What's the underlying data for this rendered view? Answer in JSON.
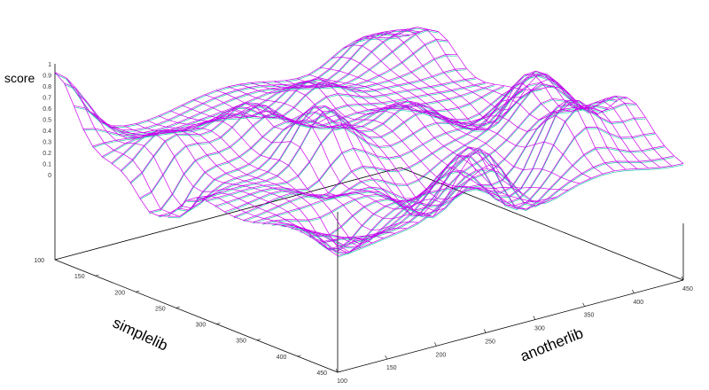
{
  "chart_data": {
    "type": "surface",
    "title": "",
    "zlabel": "score",
    "xlabel": "simplelib",
    "ylabel": "anotherlib",
    "x_range": [
      100,
      450
    ],
    "y_range": [
      100,
      450
    ],
    "z_range": [
      0,
      1
    ],
    "x_ticks": [
      "100",
      "150",
      "200",
      "250",
      "300",
      "350",
      "400",
      "450"
    ],
    "y_ticks": [
      "100",
      "150",
      "200",
      "250",
      "300",
      "350",
      "400",
      "450"
    ],
    "z_ticks": [
      "0",
      "0.1",
      "0.2",
      "0.3",
      "0.4",
      "0.5",
      "0.6",
      "0.7",
      "0.8",
      "0.9",
      "1"
    ],
    "grid": false,
    "surface_style": "wireframe mesh",
    "colors": {
      "top_surface": "#cc00ee",
      "bottom_surface": "#22ccaa"
    },
    "grid_size": 30,
    "peaks": [
      {
        "x": 100,
        "y": 100,
        "z": 0.85
      },
      {
        "x": 190,
        "y": 135,
        "z": 0.55
      },
      {
        "x": 270,
        "y": 230,
        "z": 0.78
      },
      {
        "x": 440,
        "y": 230,
        "z": 0.62
      },
      {
        "x": 175,
        "y": 300,
        "z": 0.6
      },
      {
        "x": 260,
        "y": 330,
        "z": 0.58
      },
      {
        "x": 395,
        "y": 380,
        "z": 0.88
      },
      {
        "x": 325,
        "y": 400,
        "z": 0.7
      },
      {
        "x": 430,
        "y": 265,
        "z": 0.72
      },
      {
        "x": 300,
        "y": 430,
        "z": 0.62
      },
      {
        "x": 380,
        "y": 440,
        "z": 0.64
      },
      {
        "x": 150,
        "y": 440,
        "z": 0.6
      },
      {
        "x": 120,
        "y": 400,
        "z": 0.55
      },
      {
        "x": 200,
        "y": 220,
        "z": 0.62
      }
    ],
    "valleys": [
      {
        "x": 215,
        "y": 110,
        "z": 0.05
      },
      {
        "x": 240,
        "y": 110,
        "z": 0.05
      },
      {
        "x": 385,
        "y": 155,
        "z": 0.02
      },
      {
        "x": 365,
        "y": 260,
        "z": 0.02
      },
      {
        "x": 420,
        "y": 300,
        "z": 0.03
      },
      {
        "x": 310,
        "y": 200,
        "z": 0.1
      },
      {
        "x": 380,
        "y": 330,
        "z": 0.12
      },
      {
        "x": 260,
        "y": 410,
        "z": 0.1
      },
      {
        "x": 340,
        "y": 280,
        "z": 0.15
      }
    ]
  }
}
